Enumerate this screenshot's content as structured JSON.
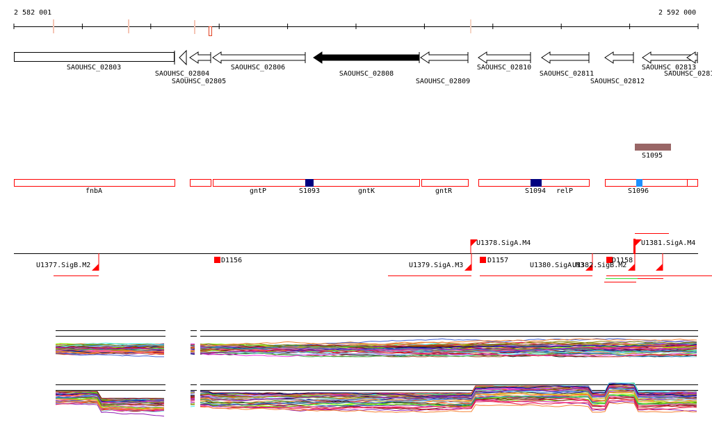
{
  "ruler": {
    "start_label": "2 582 001",
    "end_label": "2 592 000"
  },
  "genes": [
    {
      "name": "SAOUHSC_02803"
    },
    {
      "name": "SAOUHSC_02804"
    },
    {
      "name": "SAOUHSC_02805"
    },
    {
      "name": "SAOUHSC_02806"
    },
    {
      "name": "SAOUHSC_02808",
      "selected": true
    },
    {
      "name": "SAOUHSC_02809"
    },
    {
      "name": "SAOUHSC_02810"
    },
    {
      "name": "SAOUHSC_02811"
    },
    {
      "name": "SAOUHSC_02812"
    },
    {
      "name": "SAOUHSC_02813"
    },
    {
      "name": "SAOUHSC_0281"
    }
  ],
  "annotations": {
    "S1095": "S1095",
    "labels": [
      "fnbA",
      "gntP",
      "S1093",
      "gntK",
      "gntR",
      "S1094",
      "relP",
      "S1096"
    ]
  },
  "tss": [
    "U1377.SigB.M2",
    "D1156",
    "U1378.SigA.M4",
    "U1379.SigA.M3",
    "D1157",
    "U1380.SigA.M3",
    "U1382.SigB.M2",
    "D1158",
    "U1381.SigA.M4"
  ],
  "colors": {
    "annotation_border": "#ff0000",
    "sRNA_dark": "#000080",
    "sRNA_light": "#1e90ff",
    "S1095": "#996666",
    "gene_selected": "#000000"
  }
}
